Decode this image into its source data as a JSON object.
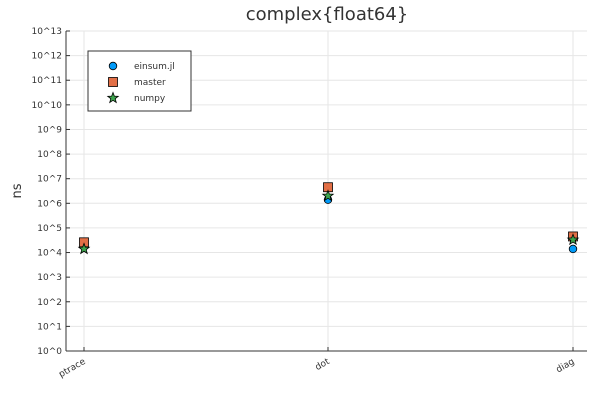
{
  "chart_data": {
    "type": "scatter",
    "title": "complex{float64}",
    "xlabel": "",
    "ylabel": "ns",
    "y_scale": "log10",
    "ylim": [
      1,
      10000000000000
    ],
    "categories": [
      "ptrace",
      "dot",
      "diag"
    ],
    "y_ticks": [
      {
        "value": 1,
        "label": "10^0"
      },
      {
        "value": 10,
        "label": "10^1"
      },
      {
        "value": 100,
        "label": "10^2"
      },
      {
        "value": 1000,
        "label": "10^3"
      },
      {
        "value": 10000,
        "label": "10^4"
      },
      {
        "value": 100000,
        "label": "10^5"
      },
      {
        "value": 1000000,
        "label": "10^6"
      },
      {
        "value": 10000000,
        "label": "10^7"
      },
      {
        "value": 100000000,
        "label": "10^8"
      },
      {
        "value": 1000000000,
        "label": "10^9"
      },
      {
        "value": 10000000000,
        "label": "10^10"
      },
      {
        "value": 100000000000,
        "label": "10^11"
      },
      {
        "value": 1000000000000,
        "label": "10^12"
      },
      {
        "value": 10000000000000,
        "label": "10^13"
      }
    ],
    "grid": true,
    "legend_position": "top-left",
    "series": [
      {
        "name": "einsum.jl",
        "marker": "circle",
        "color": "#009af9",
        "values": [
          21000,
          1400000,
          14000
        ]
      },
      {
        "name": "master",
        "marker": "square",
        "color": "#e26f46",
        "values": [
          26000,
          4500000,
          45000
        ]
      },
      {
        "name": "numpy",
        "marker": "star",
        "color": "#3da44d",
        "values": [
          14000,
          2000000,
          33000
        ]
      }
    ]
  }
}
